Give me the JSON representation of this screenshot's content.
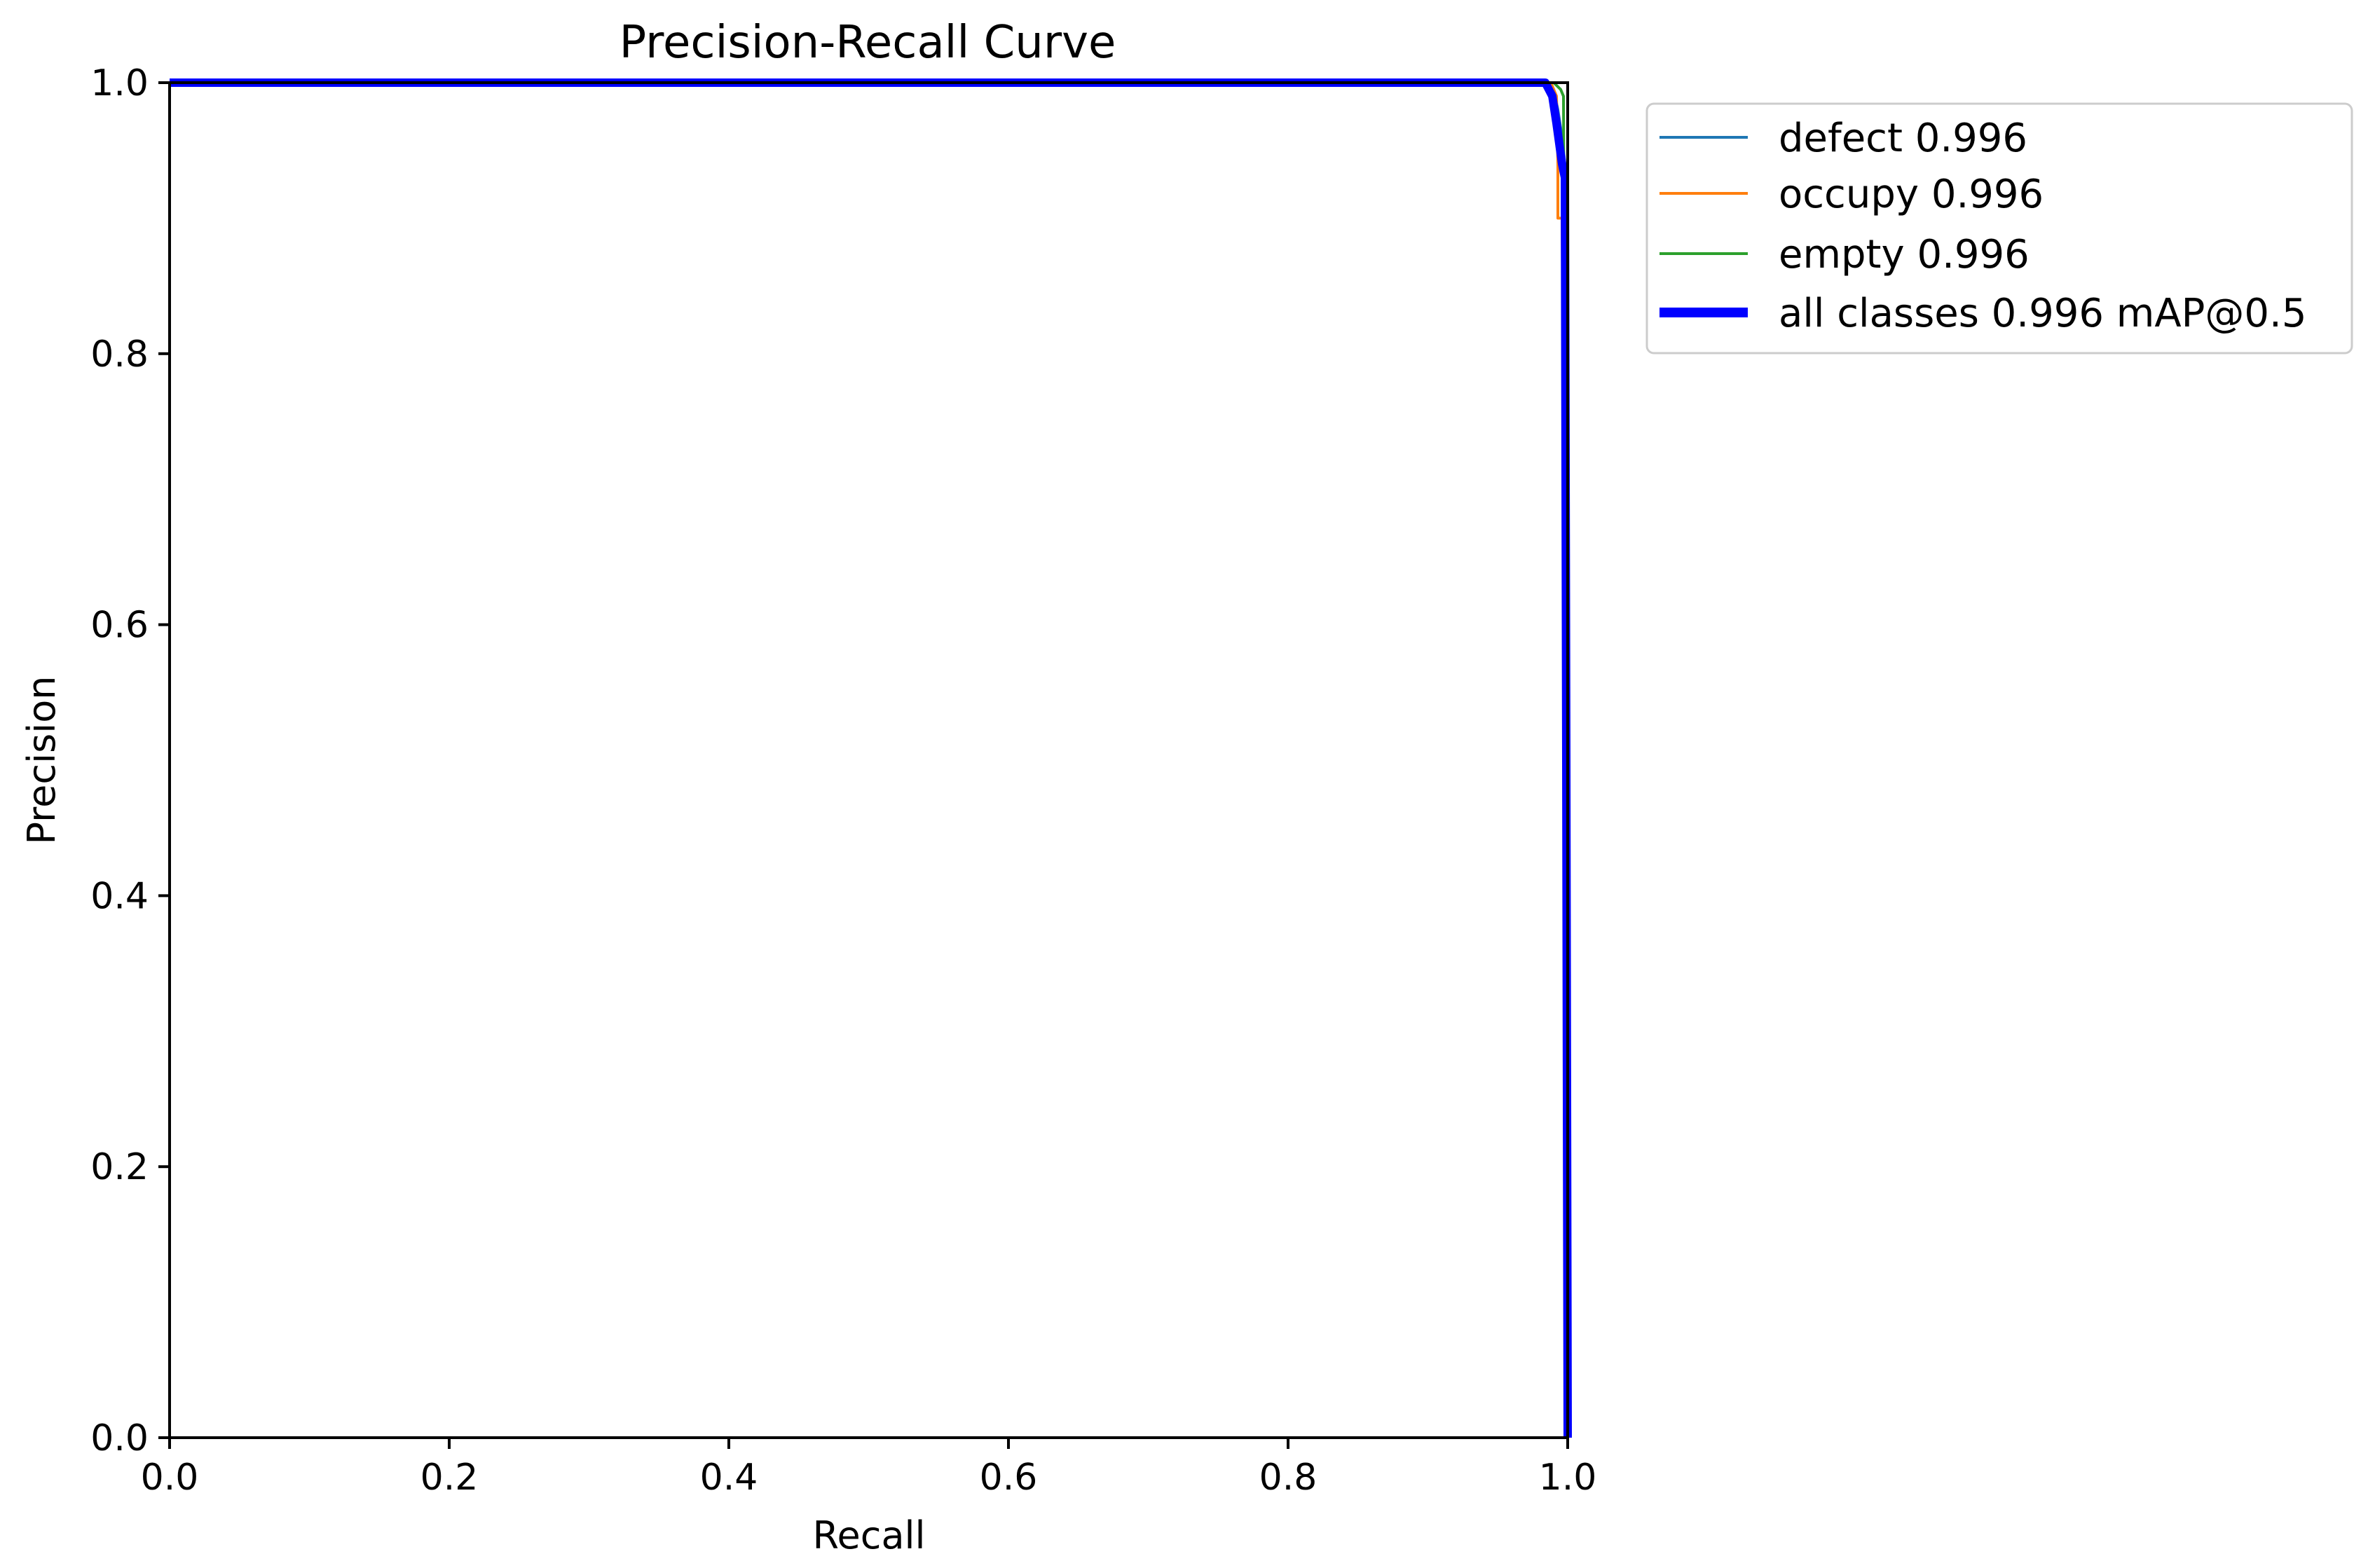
{
  "chart_data": {
    "type": "line",
    "title": "Precision-Recall Curve",
    "xlabel": "Recall",
    "ylabel": "Precision",
    "xlim": [
      0.0,
      1.0
    ],
    "ylim": [
      0.0,
      1.0
    ],
    "xticks": [
      "0.0",
      "0.2",
      "0.4",
      "0.6",
      "0.8",
      "1.0"
    ],
    "yticks": [
      "0.0",
      "0.2",
      "0.4",
      "0.6",
      "0.8",
      "1.0"
    ],
    "grid": false,
    "legend_position": "outside-top-right",
    "series": [
      {
        "name": "defect 0.996",
        "color": "#1f77b4",
        "x": [
          0.0,
          0.985,
          0.99,
          0.993,
          0.996,
          0.998,
          0.999,
          1.0
        ],
        "y": [
          1.0,
          1.0,
          0.995,
          0.98,
          0.96,
          0.94,
          0.5,
          0.0
        ]
      },
      {
        "name": "occupy 0.996",
        "color": "#ff7f0e",
        "x": [
          0.0,
          0.988,
          0.992,
          0.993,
          0.993,
          0.996,
          0.999,
          1.0
        ],
        "y": [
          1.0,
          1.0,
          0.99,
          0.94,
          0.9,
          0.9,
          0.5,
          0.0
        ]
      },
      {
        "name": "empty 0.996",
        "color": "#2ca02c",
        "x": [
          0.0,
          0.99,
          0.995,
          0.997,
          0.999,
          1.0
        ],
        "y": [
          1.0,
          1.0,
          0.995,
          0.99,
          0.5,
          0.0
        ]
      },
      {
        "name": "all classes 0.996 mAP@0.5",
        "color": "#0000ff",
        "x": [
          0.0,
          0.984,
          0.989,
          0.992,
          0.994,
          0.996,
          0.998,
          0.999,
          1.0
        ],
        "y": [
          1.0,
          1.0,
          0.99,
          0.97,
          0.955,
          0.94,
          0.93,
          0.5,
          0.0
        ]
      }
    ]
  }
}
